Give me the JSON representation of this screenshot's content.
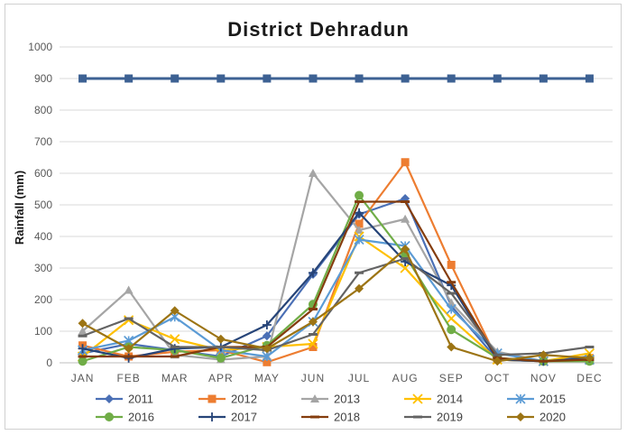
{
  "chart_data": {
    "type": "line",
    "title": "District Dehradun",
    "xlabel": "",
    "ylabel": "Rainfall (mm)",
    "ylim": [
      0,
      1000
    ],
    "yticks": [
      0,
      100,
      200,
      300,
      400,
      500,
      600,
      700,
      800,
      900,
      1000
    ],
    "grid": true,
    "legend_position": "bottom",
    "categories": [
      "JAN",
      "FEB",
      "MAR",
      "APR",
      "MAY",
      "JUN",
      "JUL",
      "AUG",
      "SEP",
      "OCT",
      "NOV",
      "DEC"
    ],
    "reference_line": {
      "value": 900,
      "color": "#3d6193"
    },
    "series": [
      {
        "name": "2011",
        "color": "#4a6fb5",
        "marker": "diamond",
        "values": [
          30,
          60,
          40,
          20,
          85,
          280,
          470,
          520,
          180,
          10,
          5,
          20
        ]
      },
      {
        "name": "2012",
        "color": "#ed7d31",
        "marker": "square",
        "values": [
          55,
          20,
          35,
          40,
          2,
          50,
          440,
          635,
          310,
          10,
          5,
          15
        ]
      },
      {
        "name": "2013",
        "color": "#a5a5a5",
        "marker": "triangle",
        "values": [
          100,
          230,
          25,
          10,
          20,
          600,
          420,
          455,
          190,
          35,
          5,
          5
        ]
      },
      {
        "name": "2014",
        "color": "#ffc000",
        "marker": "x",
        "values": [
          20,
          135,
          75,
          40,
          50,
          60,
          400,
          300,
          140,
          10,
          5,
          30
        ]
      },
      {
        "name": "2015",
        "color": "#5b9bd5",
        "marker": "star",
        "values": [
          40,
          70,
          145,
          40,
          20,
          130,
          390,
          370,
          170,
          30,
          5,
          10
        ]
      },
      {
        "name": "2016",
        "color": "#70ad47",
        "marker": "circle",
        "values": [
          5,
          50,
          40,
          15,
          55,
          185,
          530,
          340,
          105,
          15,
          5,
          5
        ]
      },
      {
        "name": "2017",
        "color": "#264478",
        "marker": "plus",
        "values": [
          45,
          15,
          45,
          50,
          120,
          285,
          475,
          320,
          245,
          10,
          5,
          15
        ]
      },
      {
        "name": "2018",
        "color": "#843c0c",
        "marker": "dash",
        "values": [
          20,
          20,
          20,
          50,
          50,
          170,
          510,
          510,
          255,
          15,
          5,
          10
        ]
      },
      {
        "name": "2019",
        "color": "#636363",
        "marker": "dash",
        "values": [
          85,
          140,
          50,
          50,
          40,
          90,
          285,
          330,
          220,
          25,
          30,
          50
        ]
      },
      {
        "name": "2020",
        "color": "#9c7414",
        "marker": "diamond",
        "values": [
          125,
          45,
          165,
          75,
          45,
          130,
          235,
          360,
          50,
          5,
          25,
          15
        ]
      }
    ]
  }
}
